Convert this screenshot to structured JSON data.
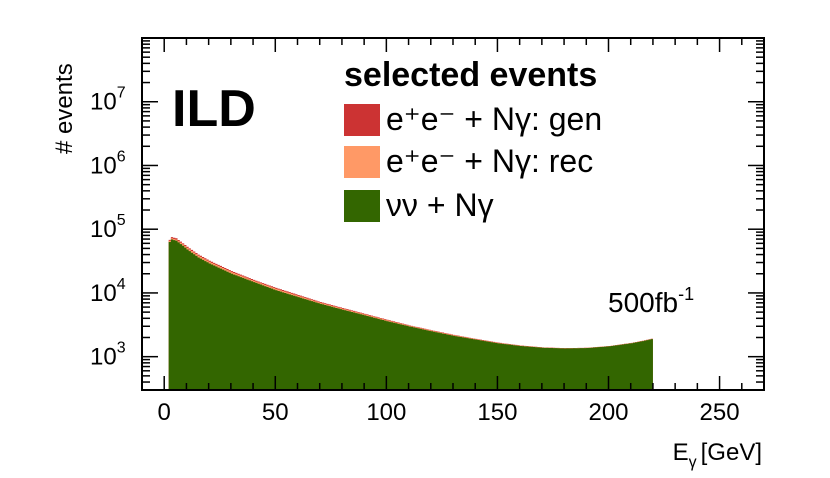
{
  "chart_data": {
    "type": "area",
    "xlabel": "E",
    "xlabel_sub": "γ",
    "xlabel_unit": "[GeV]",
    "ylabel": "# events",
    "xlim": [
      -10,
      270
    ],
    "ylim": [
      300,
      100000000
    ],
    "yscale": "log",
    "x_ticks": [
      0,
      50,
      100,
      150,
      200,
      250
    ],
    "x_tick_labels": [
      "0",
      "50",
      "100",
      "150",
      "200",
      "250"
    ],
    "y_ticks": [
      1000,
      10000,
      100000,
      1000000,
      10000000
    ],
    "y_tick_labels": [
      {
        "base": "10",
        "exp": "3"
      },
      {
        "base": "10",
        "exp": "4"
      },
      {
        "base": "10",
        "exp": "5"
      },
      {
        "base": "10",
        "exp": "6"
      },
      {
        "base": "10",
        "exp": "7"
      }
    ],
    "x_range_filled": [
      2,
      220
    ],
    "x": [
      2,
      3,
      5,
      8,
      10,
      15,
      20,
      30,
      40,
      50,
      60,
      70,
      80,
      90,
      100,
      110,
      120,
      130,
      140,
      150,
      160,
      170,
      180,
      190,
      200,
      210,
      215,
      220
    ],
    "series": [
      {
        "name": "e⁺e⁻ + Nγ:  gen",
        "color": "#cc3333",
        "values": [
          68000,
          75000,
          72000,
          60000,
          53000,
          40000,
          32000,
          22000,
          16000,
          12000,
          9300,
          7200,
          5800,
          4700,
          3800,
          3100,
          2600,
          2200,
          1900,
          1660,
          1500,
          1400,
          1360,
          1380,
          1470,
          1650,
          1780,
          1950
        ]
      },
      {
        "name": "e⁺e⁻ + Nγ: rec",
        "color": "#ff9966",
        "values": [
          66000,
          72000,
          69000,
          58000,
          51000,
          38500,
          30800,
          21200,
          15500,
          11600,
          9000,
          7000,
          5650,
          4600,
          3720,
          3050,
          2560,
          2170,
          1880,
          1640,
          1490,
          1390,
          1355,
          1375,
          1465,
          1640,
          1770,
          1940
        ]
      },
      {
        "name": "νν + Nγ",
        "color": "#336600",
        "values": [
          63000,
          69000,
          66000,
          55000,
          48000,
          36000,
          29000,
          20000,
          14800,
          11000,
          8600,
          6750,
          5450,
          4450,
          3600,
          2980,
          2500,
          2120,
          1850,
          1620,
          1470,
          1380,
          1345,
          1365,
          1455,
          1625,
          1755,
          1920
        ]
      }
    ],
    "legend_title": "selected events",
    "annotations": {
      "experiment": "ILD",
      "lumi": "500fb",
      "lumi_sup": "-1"
    },
    "legend_placement": "top-right",
    "grid": false
  }
}
